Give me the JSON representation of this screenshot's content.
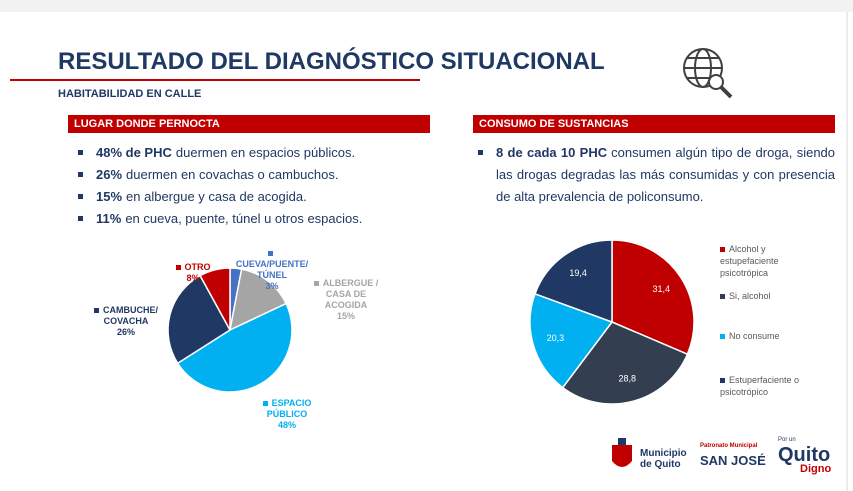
{
  "header": {
    "title": "RESULTADO DEL DIAGNÓSTICO SITUACIONAL",
    "subtitle": "HABITABILIDAD EN CALLE"
  },
  "sections": [
    {
      "heading": "LUGAR DONDE PERNOCTA",
      "bullets": [
        {
          "bold": "48% de PHC",
          "text": "duermen en espacios públicos."
        },
        {
          "bold": "26%",
          "text": "duermen en covachas o cambuchos."
        },
        {
          "bold": "15%",
          "text": "en albergue y casa de acogida."
        },
        {
          "bold": "11%",
          "text": "en cueva, puente, túnel u otros espacios."
        }
      ]
    },
    {
      "heading": "CONSUMO DE SUSTANCIAS",
      "bullets": [
        {
          "bold": "8 de cada 10 PHC",
          "text": "consumen algún tipo de droga, siendo las drogas degradas las más consumidas y con presencia de alta prevalencia de policonsumo."
        }
      ]
    }
  ],
  "chart_data": [
    {
      "type": "pie",
      "categories": [
        "CUEVA/PUENTE/ TÚNEL",
        "ALBERGUE / CASA DE ACOGIDA",
        "ESPACIO PÚBLICO",
        "CAMBUCHE/ COVACHA",
        "OTRO"
      ],
      "values": [
        3,
        15,
        48,
        26,
        8
      ],
      "value_labels": [
        "3%",
        "15%",
        "48%",
        "26%",
        "8%"
      ],
      "colors": [
        "#4472c4",
        "#a5a5a5",
        "#00b0f0",
        "#203864",
        "#c00000"
      ]
    },
    {
      "type": "pie",
      "categories": [
        "Alcohol y estupefaciente psicotrópica",
        "Si, alcohol",
        "No consume",
        "Estuperfaciente o psicotrópico"
      ],
      "values": [
        31.4,
        28.8,
        20.3,
        19.4
      ],
      "value_labels": [
        "31,4",
        "28,8",
        "20,3",
        "19,4"
      ],
      "colors": [
        "#c00000",
        "#333f50",
        "#00b0f0",
        "#1f3864"
      ],
      "legend": "right"
    }
  ],
  "logos": {
    "municipio": "Municipio de Quito",
    "patronato": "Patronato Municipal",
    "san_jose": "SAN JOSÉ",
    "por_un": "Por un",
    "quito": "Quito",
    "digno": "Digno"
  }
}
